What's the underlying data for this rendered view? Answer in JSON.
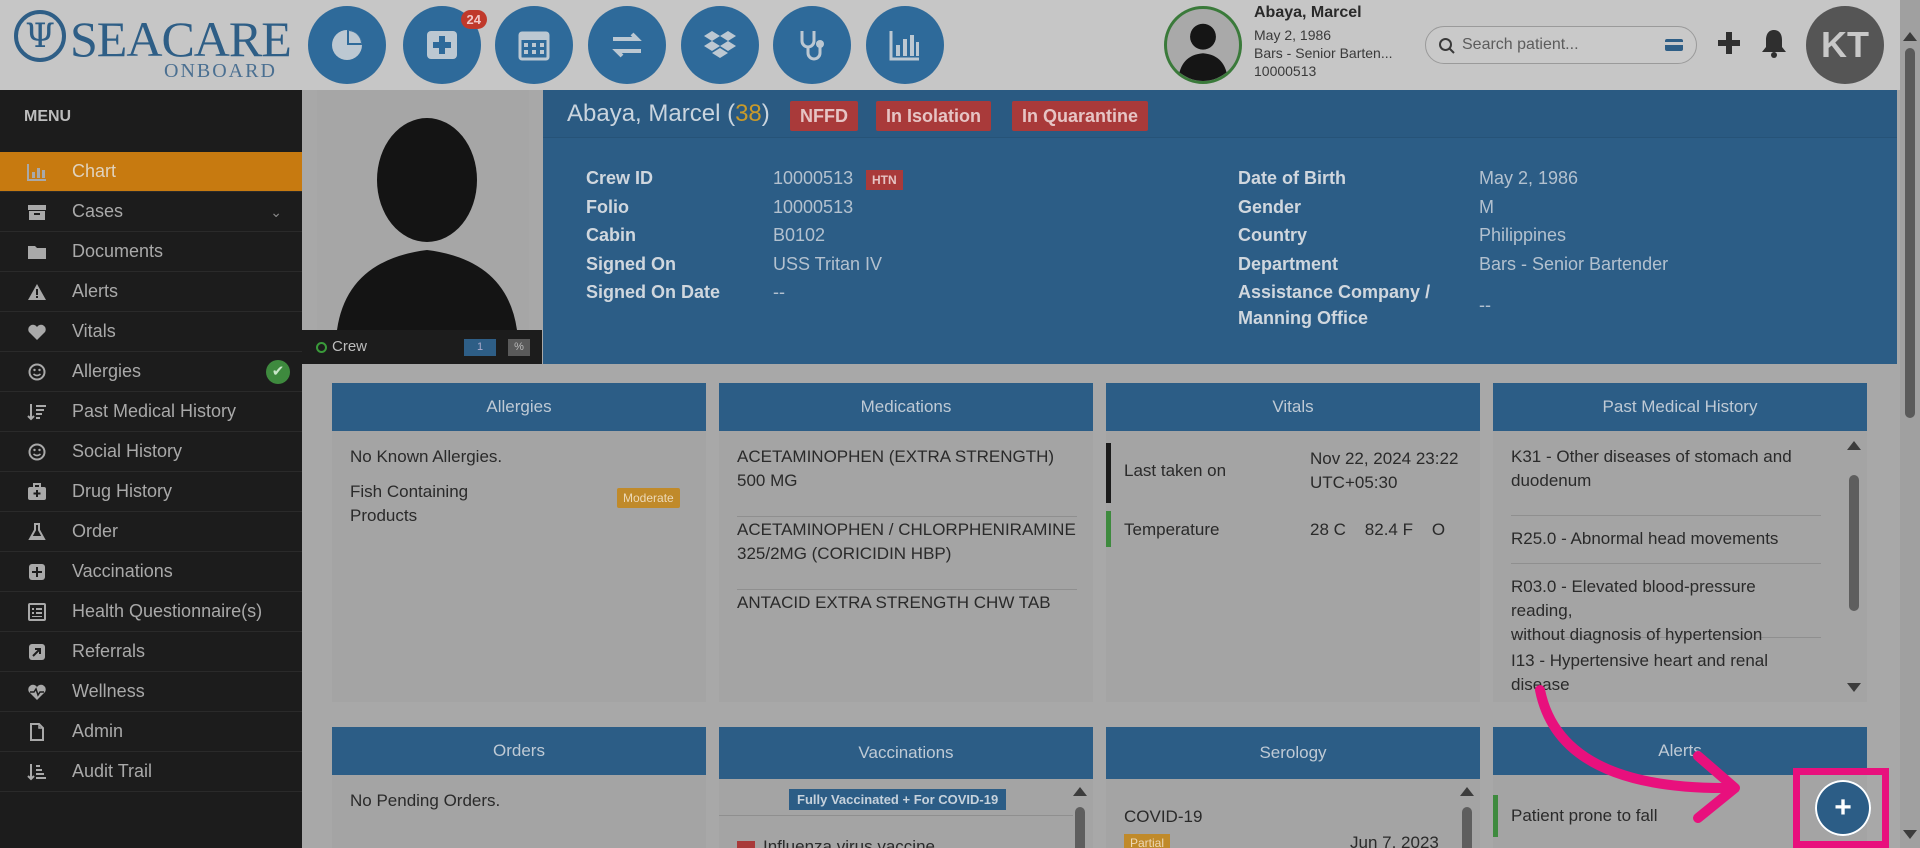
{
  "header": {
    "logo_sea": "SEACARE",
    "logo_onboard": "ONBOARD",
    "logo_trident": "Ψ",
    "nav_badge": "24",
    "nav_icons": [
      "dashboard-icon",
      "medical-plus-icon",
      "calendar-icon",
      "transfer-icon",
      "dropbox-icon",
      "stethoscope-icon",
      "bar-chart-icon"
    ],
    "patient": {
      "name": "Abaya, Marcel",
      "dob": "May 2, 1986",
      "dept": "Bars - Senior Barten...",
      "id": "10000513"
    },
    "search_placeholder": "Search patient...",
    "user_initials": "KT"
  },
  "sidebar": {
    "title": "MENU",
    "items": [
      {
        "label": "Chart",
        "icon": "chart-icon",
        "active": true
      },
      {
        "label": "Cases",
        "icon": "cases-icon"
      },
      {
        "label": "Documents",
        "icon": "folder-icon"
      },
      {
        "label": "Alerts",
        "icon": "warning-icon"
      },
      {
        "label": "Vitals",
        "icon": "heart-icon"
      },
      {
        "label": "Allergies",
        "icon": "smile-icon"
      },
      {
        "label": "Past Medical History",
        "icon": "sort-icon"
      },
      {
        "label": "Social History",
        "icon": "smile-icon"
      },
      {
        "label": "Drug History",
        "icon": "medkit-icon"
      },
      {
        "label": "Order",
        "icon": "flask-icon"
      },
      {
        "label": "Vaccinations",
        "icon": "plus-square-icon"
      },
      {
        "label": "Health Questionnaire(s)",
        "icon": "questionnaire-icon"
      },
      {
        "label": "Referrals",
        "icon": "referral-icon"
      },
      {
        "label": "Wellness",
        "icon": "heartbeat-icon"
      },
      {
        "label": "Admin",
        "icon": "file-icon"
      },
      {
        "label": "Audit Trail",
        "icon": "audit-icon"
      }
    ]
  },
  "photo": {
    "crew_label": "Crew",
    "badge1": "1",
    "badge2": "%"
  },
  "patient_header": {
    "name": "Abaya, Marcel",
    "age": "38",
    "tags": [
      "NFFD",
      "In Isolation",
      "In Quarantine"
    ],
    "htn": "HTN",
    "left": [
      {
        "label": "Crew ID",
        "value": "10000513"
      },
      {
        "label": "Folio",
        "value": "10000513"
      },
      {
        "label": "Cabin",
        "value": "B0102"
      },
      {
        "label": "Signed On",
        "value": "USS Tritan IV"
      },
      {
        "label": "Signed On Date",
        "value": "--"
      }
    ],
    "right": [
      {
        "label": "Date of Birth",
        "value": "May 2, 1986"
      },
      {
        "label": "Gender",
        "value": "M"
      },
      {
        "label": "Country",
        "value": "Philippines"
      },
      {
        "label": "Department",
        "value": "Bars - Senior Bartender"
      },
      {
        "label": "Assistance Company /",
        "label2": "Manning Office",
        "value": "--"
      }
    ]
  },
  "cards": {
    "allergies": {
      "title": "Allergies",
      "nka": "No Known Allergies.",
      "item1": "Fish Containing",
      "item2": "Products",
      "severity": "Moderate"
    },
    "medications": {
      "title": "Medications",
      "items": [
        {
          "l1": "ACETAMINOPHEN (EXTRA STRENGTH)",
          "l2": "500 MG"
        },
        {
          "l1": "ACETAMINOPHEN / CHLORPHENIRAMINE",
          "l2": "325/2MG (CORICIDIN HBP)"
        },
        {
          "l1": "ANTACID EXTRA STRENGTH CHW TAB",
          "l2": ""
        }
      ]
    },
    "vitals": {
      "title": "Vitals",
      "last_taken_label": "Last taken on",
      "last_taken_value1": "Nov 22, 2024 23:22",
      "last_taken_value2": "UTC+05:30",
      "temp_label": "Temperature",
      "temp_value": "28 C    82.4 F    O"
    },
    "pmh": {
      "title": "Past Medical History",
      "items": [
        {
          "l1": "K31 - Other diseases of stomach and",
          "l2": "duodenum"
        },
        {
          "l1": "R25.0 - Abnormal head movements",
          "l2": ""
        },
        {
          "l1": "R03.0 - Elevated blood-pressure reading,",
          "l2": "without diagnosis of hypertension"
        },
        {
          "l1": "I13 - Hypertensive heart and renal",
          "l2": "disease"
        }
      ]
    },
    "orders": {
      "title": "Orders",
      "text": "No Pending Orders."
    },
    "vaccinations": {
      "title": "Vaccinations",
      "badge": "Fully Vaccinated + For COVID-19",
      "item": "Influenza virus vaccine"
    },
    "serology": {
      "title": "Serology",
      "item": "COVID-19",
      "status": "Partial",
      "date": "Jun 7, 2023"
    },
    "alerts": {
      "title": "Alerts",
      "item": "Patient prone to fall"
    }
  },
  "fab_label": "+",
  "colors": {
    "primary": "#2c5d86",
    "active_menu": "#c77a10",
    "tag_red": "#a93a3a",
    "highlight": "#e8107d"
  }
}
